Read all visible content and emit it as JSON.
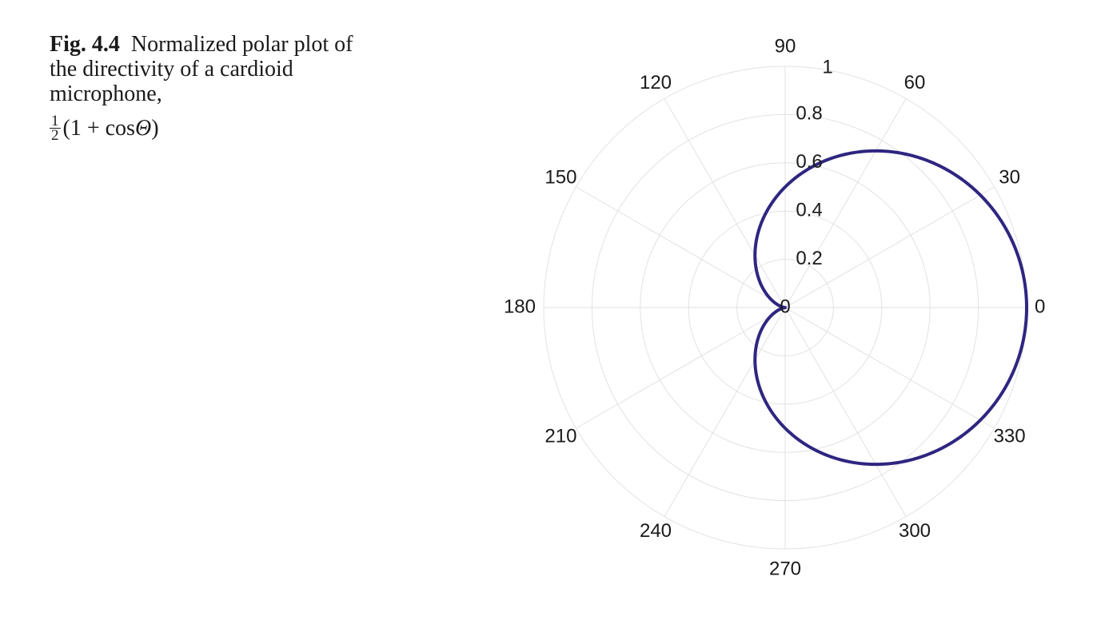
{
  "caption": {
    "label": "Fig. 4.4",
    "text": "Normalized polar plot of the directivity of a cardioid microphone,",
    "formula": {
      "frac_num": "1",
      "frac_den": "2",
      "expr_open": "(1 + cos ",
      "expr_var": "Θ",
      "expr_close": ")"
    }
  },
  "chart_data": {
    "type": "polar-line",
    "title": "",
    "function": "0.5*(1+cos(theta))",
    "series": [
      {
        "name": "cardioid",
        "color": "#2e2680",
        "theta_deg": [
          0,
          15,
          30,
          45,
          60,
          75,
          90,
          105,
          120,
          135,
          150,
          165,
          180,
          195,
          210,
          225,
          240,
          255,
          270,
          285,
          300,
          315,
          330,
          345,
          360
        ],
        "r": [
          1.0,
          0.983,
          0.933,
          0.8536,
          0.75,
          0.6294,
          0.5,
          0.3706,
          0.25,
          0.1464,
          0.067,
          0.017,
          0.0,
          0.017,
          0.067,
          0.1464,
          0.25,
          0.3706,
          0.5,
          0.6294,
          0.75,
          0.8536,
          0.933,
          0.983,
          1.0
        ]
      }
    ],
    "radial_ticks": [
      "0",
      "0.2",
      "0.4",
      "0.6",
      "0.8",
      "1"
    ],
    "radial_values": [
      0,
      0.2,
      0.4,
      0.6,
      0.8,
      1.0
    ],
    "angle_ticks": [
      "0",
      "30",
      "60",
      "90",
      "120",
      "150",
      "180",
      "210",
      "240",
      "270",
      "300",
      "330"
    ],
    "angle_values": [
      0,
      30,
      60,
      90,
      120,
      150,
      180,
      210,
      240,
      270,
      300,
      330
    ],
    "rlim": [
      0,
      1
    ],
    "grid": true,
    "grid_color": "#e2e2e2",
    "text_color": "#1a1a1a"
  }
}
